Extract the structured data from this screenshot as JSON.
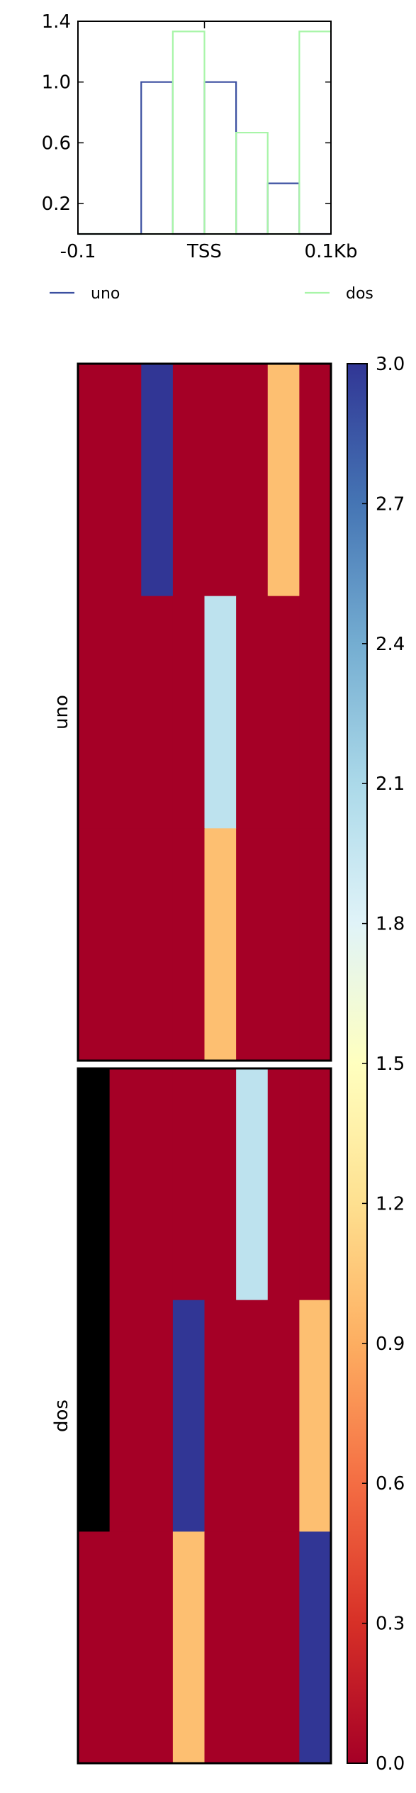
{
  "chart_data": [
    {
      "type": "line",
      "x_ticks": [
        "-0.1",
        "TSS",
        "0.1Kb"
      ],
      "y_ticks": [
        "0.2",
        "0.6",
        "1.0",
        "1.4"
      ],
      "ylim": [
        0.0,
        1.4
      ],
      "x_bins": 8,
      "grid": false,
      "legend_placement": "below",
      "series": [
        {
          "name": "uno",
          "color": "#3b4fa0",
          "values": [
            0,
            0,
            1.0,
            0,
            1.0,
            0,
            0.333,
            0
          ]
        },
        {
          "name": "dos",
          "color": "#a8f5a8",
          "values": [
            0,
            0,
            0,
            1.333,
            0,
            0.667,
            0,
            1.333
          ]
        }
      ]
    },
    {
      "type": "heatmap",
      "colormap": "RdYlBu",
      "vmin": 0.0,
      "vmax": 3.0,
      "colorbar_ticks": [
        "3.0",
        "2.7",
        "2.4",
        "2.1",
        "1.8",
        "1.5",
        "1.2",
        "0.9",
        "0.6",
        "0.3",
        "0.0"
      ],
      "nan_color": "#000000",
      "groups": [
        {
          "label": "uno",
          "columns": 8,
          "rows": [
            [
              0,
              0,
              3,
              0,
              0,
              0,
              1,
              0
            ],
            [
              0,
              0,
              0,
              0,
              2,
              0,
              0,
              0
            ],
            [
              0,
              0,
              0,
              0,
              1,
              0,
              0,
              0
            ]
          ]
        },
        {
          "label": "dos",
          "columns": 8,
          "rows": [
            [
              null,
              0,
              0,
              0,
              0,
              2,
              0,
              0
            ],
            [
              null,
              0,
              0,
              3,
              0,
              0,
              0,
              1
            ],
            [
              0,
              0,
              0,
              1,
              0,
              0,
              0,
              3
            ]
          ]
        }
      ]
    }
  ]
}
